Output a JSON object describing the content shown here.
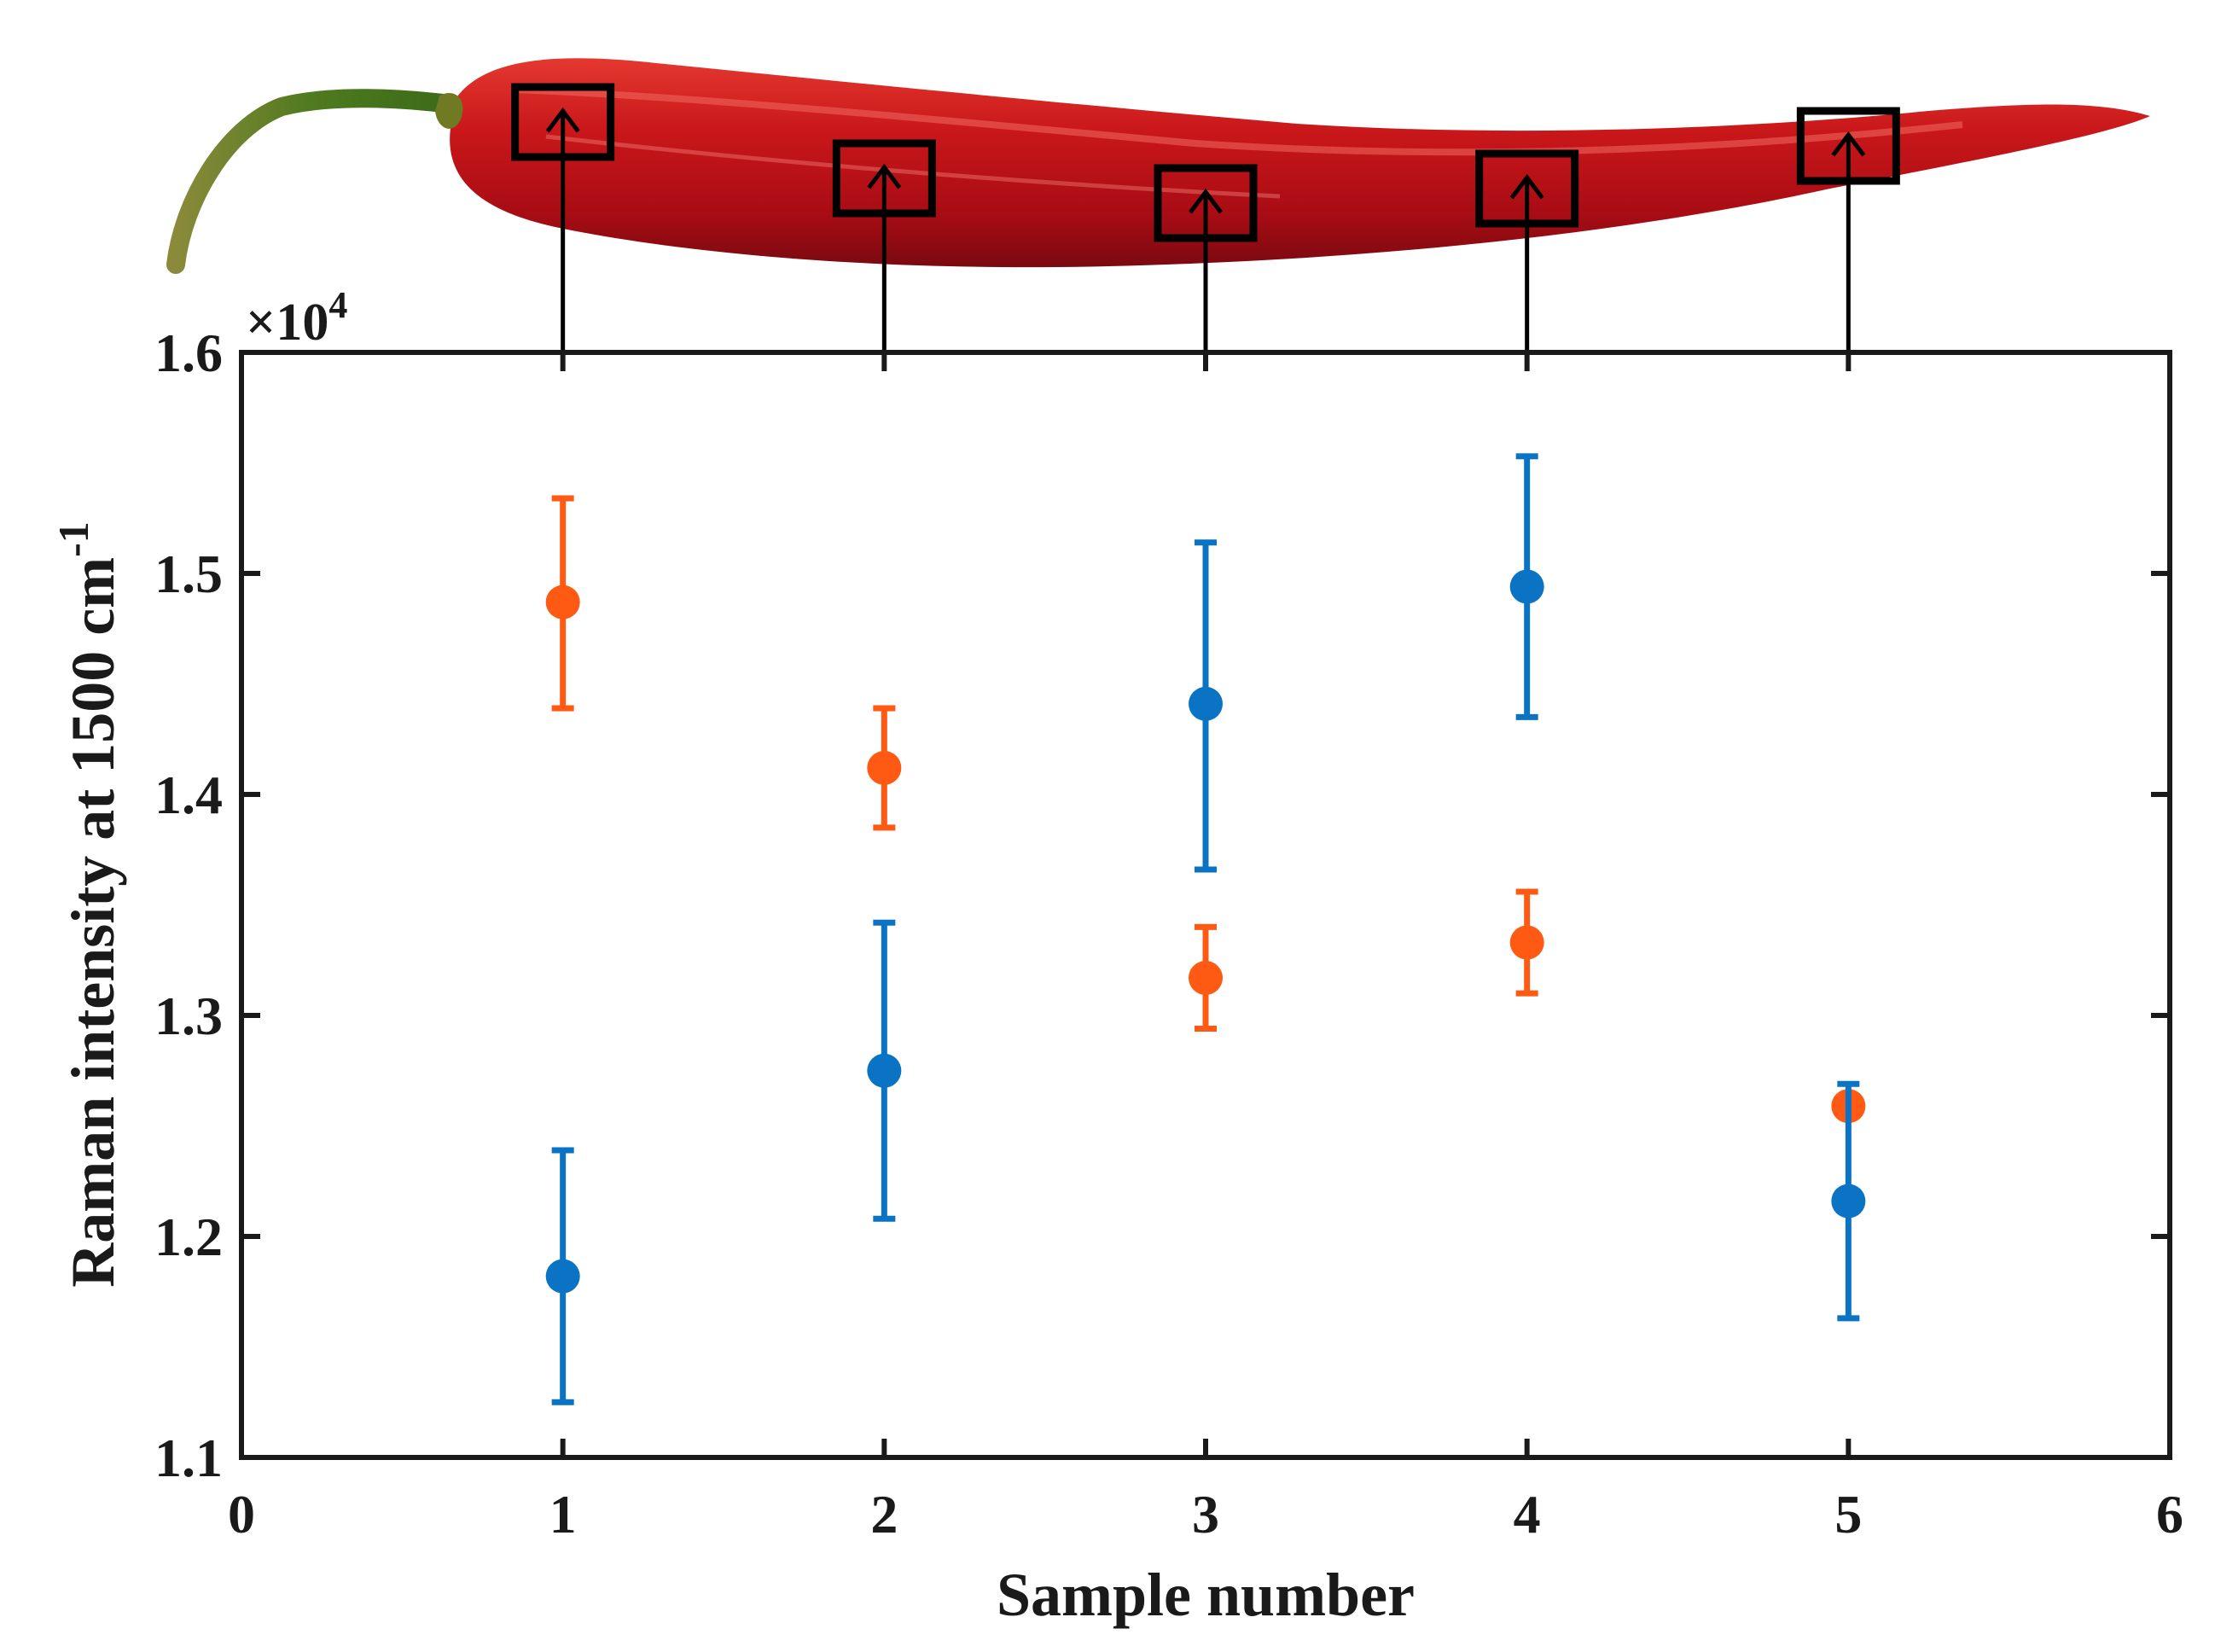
{
  "chart_data": {
    "type": "scatter",
    "title": "",
    "xlabel": "Sample number",
    "ylabel": "Raman intensity at 1500 cm",
    "ylabel_superscript": "-1",
    "y_multiplier": "×10",
    "y_multiplier_exponent": "4",
    "xlim": [
      0,
      6
    ],
    "ylim": [
      1.1,
      1.6
    ],
    "x_ticks": [
      0,
      1,
      2,
      3,
      4,
      5,
      6
    ],
    "y_ticks": [
      1.1,
      1.2,
      1.3,
      1.4,
      1.5,
      1.6
    ],
    "x_tick_labels": [
      "0",
      "1",
      "2",
      "3",
      "4",
      "5",
      "6"
    ],
    "y_tick_labels": [
      "1.1",
      "1.2",
      "1.3",
      "1.4",
      "1.5",
      "1.6"
    ],
    "grid": false,
    "legend": "none",
    "series": [
      {
        "name": "orange",
        "color": "#ff5a14",
        "x": [
          1,
          2,
          3,
          4,
          5
        ],
        "y": [
          1.487,
          1.412,
          1.317,
          1.333,
          1.259
        ],
        "err_low": [
          1.439,
          1.385,
          1.294,
          1.31,
          1.259
        ],
        "err_high": [
          1.534,
          1.439,
          1.34,
          1.356,
          1.259
        ]
      },
      {
        "name": "blue",
        "color": "#0a73c4",
        "x": [
          1,
          2,
          3,
          4,
          5
        ],
        "y": [
          1.182,
          1.275,
          1.441,
          1.494,
          1.216
        ],
        "err_low": [
          1.125,
          1.208,
          1.366,
          1.435,
          1.163
        ],
        "err_high": [
          1.239,
          1.342,
          1.514,
          1.553,
          1.269
        ]
      }
    ],
    "annotations": {
      "image": "red-chili-pepper",
      "sampling_boxes": [
        1,
        2,
        3,
        4,
        5
      ]
    }
  }
}
